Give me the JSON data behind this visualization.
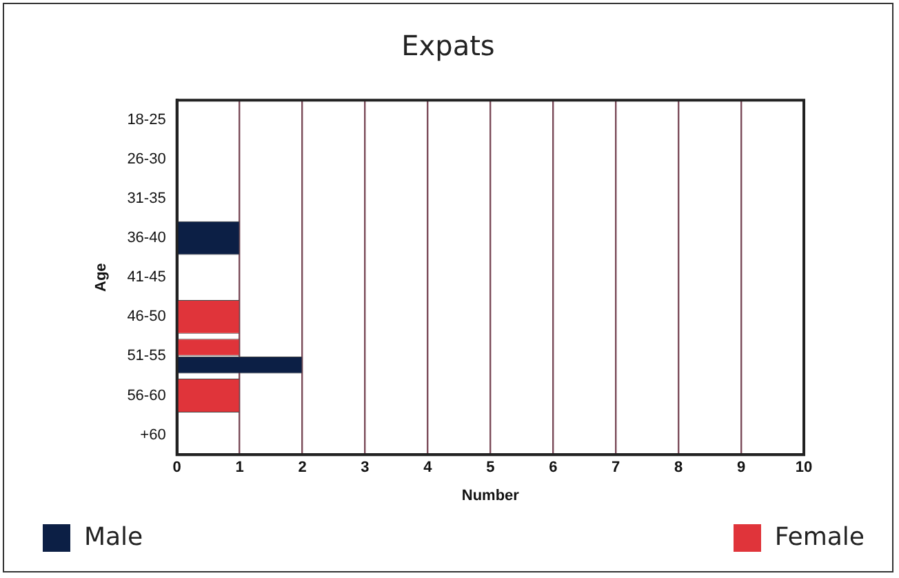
{
  "chart_data": {
    "type": "bar",
    "orientation": "horizontal",
    "title": "Expats",
    "xlabel": "Number",
    "ylabel": "Age",
    "categories": [
      "18-25",
      "26-30",
      "31-35",
      "36-40",
      "41-45",
      "46-50",
      "51-55",
      "56-60",
      "+60"
    ],
    "series": [
      {
        "name": "Female",
        "color": "#e0343a",
        "values": [
          null,
          null,
          null,
          null,
          null,
          1,
          1,
          1,
          null
        ]
      },
      {
        "name": "Male",
        "color": "#0c1f45",
        "values": [
          null,
          null,
          null,
          1,
          null,
          null,
          2,
          null,
          null
        ]
      }
    ],
    "xlim": [
      0,
      10
    ],
    "xticks": [
      0,
      1,
      2,
      3,
      4,
      5,
      6,
      7,
      8,
      9,
      10
    ],
    "grid": "x",
    "legend": "bottom"
  }
}
